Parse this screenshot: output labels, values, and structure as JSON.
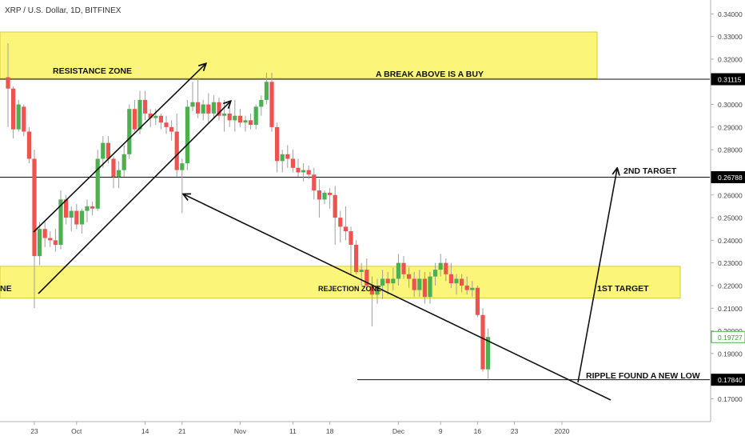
{
  "header": {
    "symbol_line": "XRP / U.S. Dollar, 1D, BITFINEX"
  },
  "chart_data": {
    "type": "candlestick",
    "title": "XRP / U.S. Dollar, 1D, BITFINEX",
    "y_axis": {
      "ticks": [
        "0.34000",
        "0.33000",
        "0.32000",
        "0.31000",
        "0.30000",
        "0.29000",
        "0.28000",
        "0.26000",
        "0.25000",
        "0.24000",
        "0.23000",
        "0.22000",
        "0.21000",
        "0.20000",
        "0.19000",
        "0.17000"
      ],
      "ylim": [
        0.165,
        0.345
      ],
      "highlighted_levels": [
        {
          "value": 0.31115,
          "label": "0.31115",
          "style": "black"
        },
        {
          "value": 0.26788,
          "label": "0.26788",
          "style": "black"
        },
        {
          "value": 0.19727,
          "label": "0.19727",
          "style": "green"
        },
        {
          "value": 0.1784,
          "label": "0.17840",
          "style": "black"
        }
      ]
    },
    "x_axis": {
      "ticks": [
        {
          "label": "23",
          "day": 0
        },
        {
          "label": "Oct",
          "day": 8
        },
        {
          "label": "14",
          "day": 21
        },
        {
          "label": "21",
          "day": 28
        },
        {
          "label": "Nov",
          "day": 39
        },
        {
          "label": "11",
          "day": 49
        },
        {
          "label": "18",
          "day": 56
        },
        {
          "label": "Dec",
          "day": 69
        },
        {
          "label": "9",
          "day": 77
        },
        {
          "label": "16",
          "day": 84
        },
        {
          "label": "23",
          "day": 91
        },
        {
          "label": "2020",
          "day": 100
        }
      ],
      "note": "day = calendar days since Sep 23, 2019"
    },
    "candles": [
      {
        "day": -5,
        "o": 0.312,
        "h": 0.327,
        "l": 0.29,
        "c": 0.307
      },
      {
        "day": -4,
        "o": 0.307,
        "h": 0.308,
        "l": 0.285,
        "c": 0.289
      },
      {
        "day": -3,
        "o": 0.289,
        "h": 0.302,
        "l": 0.288,
        "c": 0.3
      },
      {
        "day": -2,
        "o": 0.299,
        "h": 0.3,
        "l": 0.286,
        "c": 0.288
      },
      {
        "day": -1,
        "o": 0.288,
        "h": 0.29,
        "l": 0.274,
        "c": 0.276
      },
      {
        "day": 0,
        "o": 0.276,
        "h": 0.28,
        "l": 0.21,
        "c": 0.233
      },
      {
        "day": 1,
        "o": 0.233,
        "h": 0.248,
        "l": 0.229,
        "c": 0.245
      },
      {
        "day": 2,
        "o": 0.245,
        "h": 0.248,
        "l": 0.237,
        "c": 0.241
      },
      {
        "day": 3,
        "o": 0.241,
        "h": 0.244,
        "l": 0.237,
        "c": 0.24
      },
      {
        "day": 4,
        "o": 0.24,
        "h": 0.245,
        "l": 0.235,
        "c": 0.238
      },
      {
        "day": 5,
        "o": 0.238,
        "h": 0.262,
        "l": 0.236,
        "c": 0.258
      },
      {
        "day": 6,
        "o": 0.258,
        "h": 0.26,
        "l": 0.247,
        "c": 0.25
      },
      {
        "day": 7,
        "o": 0.25,
        "h": 0.255,
        "l": 0.244,
        "c": 0.253
      },
      {
        "day": 8,
        "o": 0.253,
        "h": 0.256,
        "l": 0.245,
        "c": 0.247
      },
      {
        "day": 9,
        "o": 0.247,
        "h": 0.254,
        "l": 0.243,
        "c": 0.253
      },
      {
        "day": 10,
        "o": 0.253,
        "h": 0.258,
        "l": 0.248,
        "c": 0.255
      },
      {
        "day": 11,
        "o": 0.255,
        "h": 0.257,
        "l": 0.251,
        "c": 0.254
      },
      {
        "day": 12,
        "o": 0.254,
        "h": 0.28,
        "l": 0.253,
        "c": 0.276
      },
      {
        "day": 13,
        "o": 0.276,
        "h": 0.286,
        "l": 0.272,
        "c": 0.283
      },
      {
        "day": 14,
        "o": 0.283,
        "h": 0.286,
        "l": 0.274,
        "c": 0.276
      },
      {
        "day": 15,
        "o": 0.276,
        "h": 0.277,
        "l": 0.263,
        "c": 0.268
      },
      {
        "day": 16,
        "o": 0.268,
        "h": 0.275,
        "l": 0.263,
        "c": 0.271
      },
      {
        "day": 17,
        "o": 0.271,
        "h": 0.282,
        "l": 0.268,
        "c": 0.278
      },
      {
        "day": 18,
        "o": 0.278,
        "h": 0.3,
        "l": 0.276,
        "c": 0.298
      },
      {
        "day": 19,
        "o": 0.298,
        "h": 0.302,
        "l": 0.288,
        "c": 0.289
      },
      {
        "day": 20,
        "o": 0.289,
        "h": 0.306,
        "l": 0.287,
        "c": 0.302
      },
      {
        "day": 21,
        "o": 0.302,
        "h": 0.306,
        "l": 0.293,
        "c": 0.296
      },
      {
        "day": 22,
        "o": 0.296,
        "h": 0.298,
        "l": 0.29,
        "c": 0.294
      },
      {
        "day": 23,
        "o": 0.294,
        "h": 0.298,
        "l": 0.291,
        "c": 0.295
      },
      {
        "day": 24,
        "o": 0.295,
        "h": 0.296,
        "l": 0.289,
        "c": 0.292
      },
      {
        "day": 25,
        "o": 0.292,
        "h": 0.295,
        "l": 0.287,
        "c": 0.29
      },
      {
        "day": 26,
        "o": 0.29,
        "h": 0.293,
        "l": 0.284,
        "c": 0.288
      },
      {
        "day": 27,
        "o": 0.288,
        "h": 0.296,
        "l": 0.268,
        "c": 0.271
      },
      {
        "day": 28,
        "o": 0.271,
        "h": 0.276,
        "l": 0.252,
        "c": 0.274
      },
      {
        "day": 29,
        "o": 0.274,
        "h": 0.302,
        "l": 0.271,
        "c": 0.299
      },
      {
        "day": 30,
        "o": 0.299,
        "h": 0.31,
        "l": 0.297,
        "c": 0.301
      },
      {
        "day": 31,
        "o": 0.301,
        "h": 0.312,
        "l": 0.294,
        "c": 0.296
      },
      {
        "day": 32,
        "o": 0.296,
        "h": 0.302,
        "l": 0.293,
        "c": 0.3
      },
      {
        "day": 33,
        "o": 0.3,
        "h": 0.305,
        "l": 0.292,
        "c": 0.296
      },
      {
        "day": 34,
        "o": 0.296,
        "h": 0.304,
        "l": 0.294,
        "c": 0.301
      },
      {
        "day": 35,
        "o": 0.301,
        "h": 0.303,
        "l": 0.293,
        "c": 0.295
      },
      {
        "day": 36,
        "o": 0.295,
        "h": 0.302,
        "l": 0.288,
        "c": 0.296
      },
      {
        "day": 37,
        "o": 0.296,
        "h": 0.299,
        "l": 0.29,
        "c": 0.293
      },
      {
        "day": 38,
        "o": 0.293,
        "h": 0.302,
        "l": 0.288,
        "c": 0.295
      },
      {
        "day": 39,
        "o": 0.295,
        "h": 0.298,
        "l": 0.29,
        "c": 0.292
      },
      {
        "day": 40,
        "o": 0.292,
        "h": 0.295,
        "l": 0.288,
        "c": 0.293
      },
      {
        "day": 41,
        "o": 0.293,
        "h": 0.296,
        "l": 0.289,
        "c": 0.291
      },
      {
        "day": 42,
        "o": 0.291,
        "h": 0.3,
        "l": 0.289,
        "c": 0.299
      },
      {
        "day": 43,
        "o": 0.299,
        "h": 0.304,
        "l": 0.295,
        "c": 0.302
      },
      {
        "day": 44,
        "o": 0.302,
        "h": 0.314,
        "l": 0.3,
        "c": 0.31
      },
      {
        "day": 45,
        "o": 0.31,
        "h": 0.314,
        "l": 0.288,
        "c": 0.29
      },
      {
        "day": 46,
        "o": 0.29,
        "h": 0.292,
        "l": 0.27,
        "c": 0.275
      },
      {
        "day": 47,
        "o": 0.275,
        "h": 0.28,
        "l": 0.27,
        "c": 0.278
      },
      {
        "day": 48,
        "o": 0.278,
        "h": 0.282,
        "l": 0.272,
        "c": 0.276
      },
      {
        "day": 49,
        "o": 0.276,
        "h": 0.28,
        "l": 0.27,
        "c": 0.272
      },
      {
        "day": 50,
        "o": 0.272,
        "h": 0.276,
        "l": 0.268,
        "c": 0.27
      },
      {
        "day": 51,
        "o": 0.27,
        "h": 0.274,
        "l": 0.266,
        "c": 0.271
      },
      {
        "day": 52,
        "o": 0.271,
        "h": 0.273,
        "l": 0.267,
        "c": 0.269
      },
      {
        "day": 53,
        "o": 0.269,
        "h": 0.272,
        "l": 0.258,
        "c": 0.262
      },
      {
        "day": 54,
        "o": 0.262,
        "h": 0.267,
        "l": 0.25,
        "c": 0.258
      },
      {
        "day": 55,
        "o": 0.258,
        "h": 0.262,
        "l": 0.256,
        "c": 0.261
      },
      {
        "day": 56,
        "o": 0.261,
        "h": 0.263,
        "l": 0.254,
        "c": 0.26
      },
      {
        "day": 57,
        "o": 0.26,
        "h": 0.264,
        "l": 0.238,
        "c": 0.25
      },
      {
        "day": 58,
        "o": 0.25,
        "h": 0.253,
        "l": 0.239,
        "c": 0.246
      },
      {
        "day": 59,
        "o": 0.246,
        "h": 0.255,
        "l": 0.24,
        "c": 0.244
      },
      {
        "day": 60,
        "o": 0.244,
        "h": 0.246,
        "l": 0.225,
        "c": 0.238
      },
      {
        "day": 61,
        "o": 0.238,
        "h": 0.24,
        "l": 0.225,
        "c": 0.226
      },
      {
        "day": 62,
        "o": 0.226,
        "h": 0.23,
        "l": 0.22,
        "c": 0.227
      },
      {
        "day": 63,
        "o": 0.227,
        "h": 0.232,
        "l": 0.218,
        "c": 0.22
      },
      {
        "day": 64,
        "o": 0.22,
        "h": 0.224,
        "l": 0.202,
        "c": 0.216
      },
      {
        "day": 65,
        "o": 0.216,
        "h": 0.223,
        "l": 0.212,
        "c": 0.22
      },
      {
        "day": 66,
        "o": 0.22,
        "h": 0.227,
        "l": 0.214,
        "c": 0.223
      },
      {
        "day": 67,
        "o": 0.223,
        "h": 0.226,
        "l": 0.216,
        "c": 0.221
      },
      {
        "day": 68,
        "o": 0.221,
        "h": 0.228,
        "l": 0.218,
        "c": 0.223
      },
      {
        "day": 69,
        "o": 0.223,
        "h": 0.234,
        "l": 0.22,
        "c": 0.23
      },
      {
        "day": 70,
        "o": 0.23,
        "h": 0.233,
        "l": 0.223,
        "c": 0.225
      },
      {
        "day": 71,
        "o": 0.225,
        "h": 0.228,
        "l": 0.219,
        "c": 0.223
      },
      {
        "day": 72,
        "o": 0.223,
        "h": 0.226,
        "l": 0.215,
        "c": 0.218
      },
      {
        "day": 73,
        "o": 0.218,
        "h": 0.227,
        "l": 0.215,
        "c": 0.223
      },
      {
        "day": 74,
        "o": 0.223,
        "h": 0.226,
        "l": 0.212,
        "c": 0.215
      },
      {
        "day": 75,
        "o": 0.215,
        "h": 0.226,
        "l": 0.212,
        "c": 0.224
      },
      {
        "day": 76,
        "o": 0.224,
        "h": 0.23,
        "l": 0.22,
        "c": 0.227
      },
      {
        "day": 77,
        "o": 0.227,
        "h": 0.234,
        "l": 0.224,
        "c": 0.23
      },
      {
        "day": 78,
        "o": 0.23,
        "h": 0.232,
        "l": 0.222,
        "c": 0.225
      },
      {
        "day": 79,
        "o": 0.225,
        "h": 0.23,
        "l": 0.219,
        "c": 0.221
      },
      {
        "day": 80,
        "o": 0.221,
        "h": 0.225,
        "l": 0.216,
        "c": 0.223
      },
      {
        "day": 81,
        "o": 0.223,
        "h": 0.225,
        "l": 0.217,
        "c": 0.22
      },
      {
        "day": 82,
        "o": 0.22,
        "h": 0.224,
        "l": 0.216,
        "c": 0.218
      },
      {
        "day": 83,
        "o": 0.218,
        "h": 0.222,
        "l": 0.215,
        "c": 0.219
      },
      {
        "day": 84,
        "o": 0.219,
        "h": 0.22,
        "l": 0.206,
        "c": 0.207
      },
      {
        "day": 85,
        "o": 0.207,
        "h": 0.21,
        "l": 0.182,
        "c": 0.183
      },
      {
        "day": 86,
        "o": 0.183,
        "h": 0.201,
        "l": 0.179,
        "c": 0.1973
      }
    ],
    "zones": [
      {
        "name": "RESISTANCE ZONE",
        "from": 0.3115,
        "to": 0.332,
        "color": "#fbf57a"
      },
      {
        "name": "REJECTION ZONE",
        "from": 0.2145,
        "to": 0.2285,
        "color": "#fbf57a"
      }
    ],
    "annotations": [
      {
        "text": "RESISTANCE ZONE"
      },
      {
        "text": "A BREAK ABOVE IS A BUY"
      },
      {
        "text": "2ND TARGET"
      },
      {
        "text": "NE"
      },
      {
        "text": "REJECTION ZONE"
      },
      {
        "text": "1ST TARGET"
      },
      {
        "text": "RIPPLE FOUND A NEW LOW"
      }
    ],
    "colors": {
      "up": "#4caf50",
      "down": "#ef5350",
      "zone": "#fbf57a",
      "zone_border": "#d6cf3a"
    }
  }
}
